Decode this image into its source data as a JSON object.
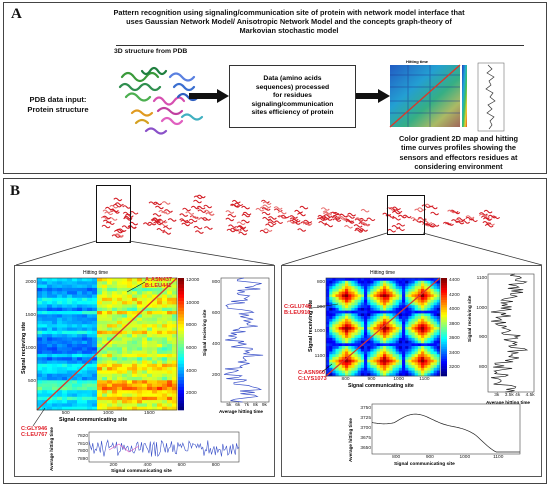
{
  "panel_a": {
    "letter": "A",
    "title_line1": "Pattern recognition using signaling/communication site of protein with network model interface that",
    "title_line2": "uses Gaussian Network Model/ Anisotropic Network Model and  the concepts graph-theory of",
    "title_line3": "Markovian stochastic model",
    "structure_caption": "3D structure from PDB",
    "input_line1": "PDB data input:",
    "input_line2": "Protein structure",
    "process_line1": "Data (amino acids",
    "process_line2": "sequences) processed",
    "process_line3": "for residues",
    "process_line4": "signaling/communication",
    "process_line5": "sites efficiency of protein",
    "output_line1": "Color gradient 2D map and hitting",
    "output_line2": "time curves profiles showing the",
    "output_line3": "sensors and effectors residues at",
    "output_line4": "considering environment",
    "mini_map_title": "Hitting time"
  },
  "panel_b": {
    "letter": "B",
    "left": {
      "map_title": "Hitting time",
      "xlabel": "Signal communicating site",
      "ylabel": "Signal recieving site",
      "ann_top_line1": "A:ASN437",
      "ann_top_line2": "B:LEU441",
      "ann_bot_line1": "C:GLY946",
      "ann_bot_line2": "C:LEU767",
      "x_ticks": [
        "500",
        "1000",
        "1500"
      ],
      "y_ticks": [
        "2000",
        "1500",
        "1000",
        "500"
      ],
      "cbar_ticks": [
        "12000",
        "10000",
        "8000",
        "6000",
        "4000",
        "2000"
      ],
      "profile_ylabel": "Signal recieving site",
      "profile_xlabel": "Average hitting time",
      "profile_y_ticks": [
        "800",
        "600",
        "400",
        "200"
      ],
      "profile_x_ticks": [
        "5k",
        "6k",
        "7k",
        "8k",
        "9k"
      ],
      "bottom_ylabel": "Average hitting time",
      "bottom_xlabel": "Signal communicating site",
      "bottom_y_ticks": [
        "7820",
        "7810",
        "7800",
        "7890"
      ],
      "bottom_x_ticks": [
        "200",
        "400",
        "600",
        "800"
      ]
    },
    "right": {
      "map_title": "Hitting time",
      "xlabel": "Signal communicating site",
      "ylabel": "Signal receiving site",
      "ann_top_line1": "C:GLU748",
      "ann_top_line2": "B:LEU916",
      "ann_bot_line1": "C:ASN960",
      "ann_bot_line2": "C:LYS1073",
      "x_ticks": [
        "800",
        "900",
        "1000",
        "1100"
      ],
      "y_ticks": [
        "800",
        "900",
        "1000",
        "1100"
      ],
      "cbar_ticks": [
        "4400",
        "4200",
        "4000",
        "3800",
        "3600",
        "3400",
        "3200"
      ],
      "profile_ylabel": "Signal receiving site",
      "profile_xlabel": "Average hitting time",
      "profile_y_ticks": [
        "1100",
        "1000",
        "900",
        "800"
      ],
      "profile_x_ticks": [
        "3k",
        "3.5k",
        "4k",
        "4.5k"
      ],
      "bottom_ylabel": "Average hitting time",
      "bottom_xlabel": "Signal communicating site",
      "bottom_y_ticks": [
        "3750",
        "3725",
        "3700",
        "3675",
        "3650"
      ],
      "bottom_x_ticks": [
        "800",
        "900",
        "1000",
        "1100"
      ]
    }
  },
  "colors": {
    "arrow": "#111111",
    "annotation_red": "#e0202a",
    "protein_red": "#d41e26",
    "diagonal": "#d8382b"
  }
}
